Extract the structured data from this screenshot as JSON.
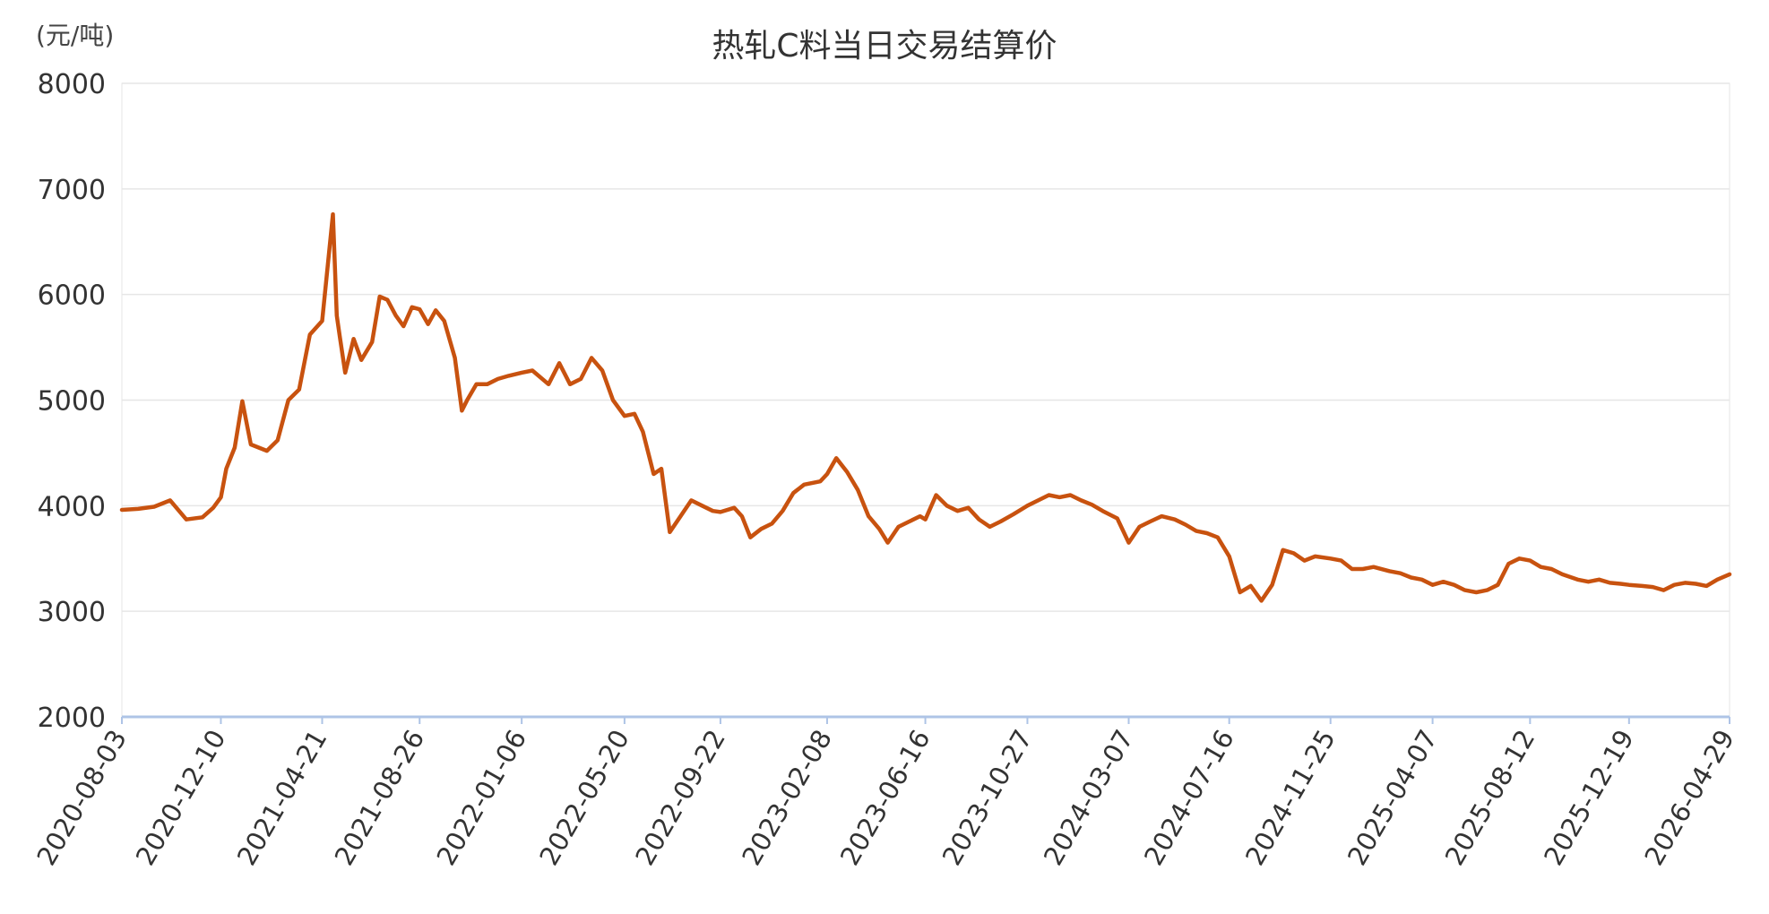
{
  "chart_data": {
    "type": "line",
    "title": "热轧C料当日交易结算价",
    "ylabel": "(元/吨)",
    "xlabel": "",
    "ylim": [
      2000,
      8000
    ],
    "yticks": [
      2000,
      3000,
      4000,
      5000,
      6000,
      7000,
      8000
    ],
    "xticks": [
      "2020-08-03",
      "2020-12-10",
      "2021-04-21",
      "2021-08-26",
      "2022-01-06",
      "2022-05-20",
      "2022-09-22",
      "2023-02-08",
      "2023-06-16",
      "2023-10-27",
      "2024-03-07",
      "2024-07-16",
      "2024-11-25",
      "2025-04-07",
      "2025-08-12",
      "2025-12-19",
      "2026-04-29"
    ],
    "grid": true,
    "colors": {
      "line": "#C8520F",
      "grid": "#e6e6e6",
      "axis": "#aec4e6",
      "text": "#333333"
    },
    "series": [
      {
        "x": [
          "2020-08-03",
          "2020-08-24",
          "2020-09-14",
          "2020-10-05",
          "2020-10-26",
          "2020-11-16",
          "2020-11-30",
          "2020-12-10",
          "2020-12-17",
          "2020-12-28",
          "2021-01-07",
          "2021-01-18",
          "2021-02-08",
          "2021-02-22",
          "2021-03-08",
          "2021-03-22",
          "2021-04-05",
          "2021-04-21",
          "2021-05-05",
          "2021-05-10",
          "2021-05-14",
          "2021-05-21",
          "2021-06-01",
          "2021-06-11",
          "2021-06-25",
          "2021-07-05",
          "2021-07-15",
          "2021-07-26",
          "2021-08-05",
          "2021-08-16",
          "2021-08-26",
          "2021-09-06",
          "2021-09-16",
          "2021-09-27",
          "2021-10-11",
          "2021-10-20",
          "2021-10-27",
          "2021-11-08",
          "2021-11-22",
          "2021-12-06",
          "2021-12-20",
          "2022-01-06",
          "2022-01-20",
          "2022-02-10",
          "2022-02-24",
          "2022-03-10",
          "2022-03-24",
          "2022-04-07",
          "2022-04-21",
          "2022-05-05",
          "2022-05-20",
          "2022-06-02",
          "2022-06-13",
          "2022-06-27",
          "2022-07-07",
          "2022-07-18",
          "2022-08-01",
          "2022-08-15",
          "2022-08-29",
          "2022-09-12",
          "2022-09-22",
          "2022-10-10",
          "2022-10-20",
          "2022-10-31",
          "2022-11-14",
          "2022-11-28",
          "2022-12-12",
          "2022-12-26",
          "2023-01-09",
          "2023-01-30",
          "2023-02-08",
          "2023-02-20",
          "2023-03-06",
          "2023-03-20",
          "2023-04-03",
          "2023-04-17",
          "2023-04-28",
          "2023-05-12",
          "2023-05-26",
          "2023-06-09",
          "2023-06-16",
          "2023-06-30",
          "2023-07-14",
          "2023-07-28",
          "2023-08-11",
          "2023-08-25",
          "2023-09-08",
          "2023-09-22",
          "2023-10-09",
          "2023-10-27",
          "2023-11-10",
          "2023-11-24",
          "2023-12-08",
          "2023-12-22",
          "2024-01-05",
          "2024-01-19",
          "2024-02-02",
          "2024-02-21",
          "2024-03-07",
          "2024-03-21",
          "2024-04-04",
          "2024-04-19",
          "2024-05-06",
          "2024-05-20",
          "2024-06-03",
          "2024-06-17",
          "2024-07-01",
          "2024-07-16",
          "2024-07-30",
          "2024-08-13",
          "2024-08-27",
          "2024-09-10",
          "2024-09-24",
          "2024-10-08",
          "2024-10-22",
          "2024-11-05",
          "2024-11-25",
          "2024-12-09",
          "2024-12-23",
          "2025-01-06",
          "2025-01-20",
          "2025-02-10",
          "2025-02-24",
          "2025-03-10",
          "2025-03-24",
          "2025-04-07",
          "2025-04-21",
          "2025-05-05",
          "2025-05-19",
          "2025-06-03",
          "2025-06-17",
          "2025-07-01",
          "2025-07-15",
          "2025-07-29",
          "2025-08-12",
          "2025-08-26",
          "2025-09-09",
          "2025-09-23",
          "2025-10-13",
          "2025-10-27",
          "2025-11-10",
          "2025-11-24",
          "2025-12-08",
          "2025-12-19",
          "2026-01-05",
          "2026-01-19",
          "2026-02-02",
          "2026-02-16",
          "2026-03-02",
          "2026-03-16",
          "2026-03-30",
          "2026-04-13",
          "2026-04-29"
        ],
        "values": [
          3960,
          3970,
          3990,
          4050,
          3870,
          3890,
          3980,
          4080,
          4350,
          4550,
          4990,
          4580,
          4520,
          4620,
          5000,
          5100,
          5620,
          5750,
          6760,
          5800,
          5600,
          5260,
          5580,
          5380,
          5550,
          5980,
          5950,
          5800,
          5700,
          5880,
          5860,
          5720,
          5850,
          5750,
          5400,
          4900,
          5000,
          5150,
          5150,
          5200,
          5230,
          5260,
          5280,
          5150,
          5350,
          5150,
          5200,
          5400,
          5280,
          5000,
          4850,
          4870,
          4700,
          4300,
          4350,
          3750,
          3900,
          4050,
          4000,
          3950,
          3940,
          3980,
          3900,
          3700,
          3780,
          3830,
          3950,
          4120,
          4200,
          4230,
          4300,
          4450,
          4320,
          4150,
          3900,
          3780,
          3650,
          3800,
          3850,
          3900,
          3870,
          4100,
          4000,
          3950,
          3980,
          3870,
          3800,
          3850,
          3920,
          4000,
          4050,
          4100,
          4080,
          4100,
          4050,
          4010,
          3950,
          3880,
          3650,
          3800,
          3850,
          3900,
          3870,
          3820,
          3760,
          3740,
          3700,
          3520,
          3180,
          3240,
          3100,
          3250,
          3580,
          3550,
          3480,
          3520,
          3500,
          3480,
          3400,
          3400,
          3420,
          3380,
          3360,
          3320,
          3300,
          3250,
          3280,
          3250,
          3200,
          3180,
          3200,
          3250,
          3450,
          3500,
          3480,
          3420,
          3400,
          3350,
          3300,
          3280,
          3300,
          3270,
          3260,
          3250,
          3240,
          3230,
          3200,
          3250,
          3270,
          3260,
          3240,
          3300,
          3350
        ]
      }
    ]
  }
}
